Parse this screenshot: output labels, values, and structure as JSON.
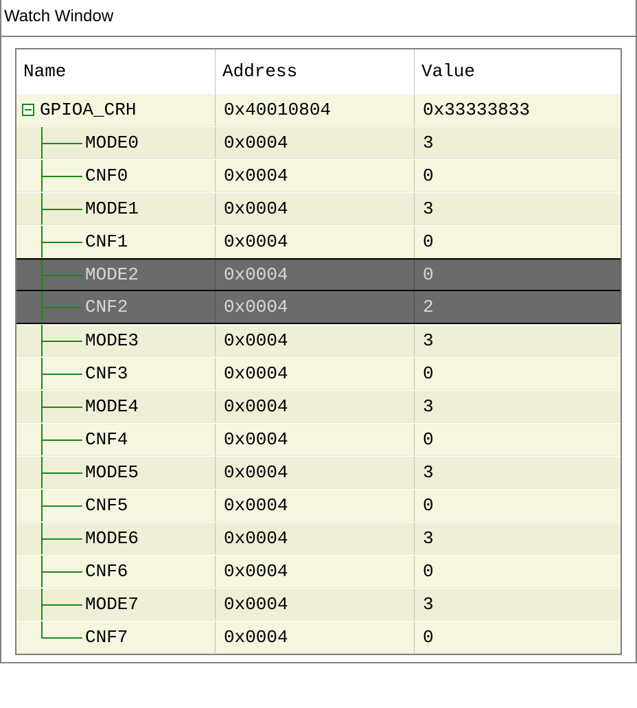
{
  "window": {
    "title": "Watch Window"
  },
  "columns": {
    "name": "Name",
    "address": "Address",
    "value": "Value"
  },
  "root": {
    "name": "GPIOA_CRH",
    "address": "0x40010804",
    "value": "0x33333833"
  },
  "children": [
    {
      "name": "MODE0",
      "address": "0x0004",
      "value": "3",
      "selected": false
    },
    {
      "name": "CNF0",
      "address": "0x0004",
      "value": "0",
      "selected": false
    },
    {
      "name": "MODE1",
      "address": "0x0004",
      "value": "3",
      "selected": false
    },
    {
      "name": "CNF1",
      "address": "0x0004",
      "value": "0",
      "selected": false
    },
    {
      "name": "MODE2",
      "address": "0x0004",
      "value": "0",
      "selected": true
    },
    {
      "name": "CNF2",
      "address": "0x0004",
      "value": "2",
      "selected": true
    },
    {
      "name": "MODE3",
      "address": "0x0004",
      "value": "3",
      "selected": false
    },
    {
      "name": "CNF3",
      "address": "0x0004",
      "value": "0",
      "selected": false
    },
    {
      "name": "MODE4",
      "address": "0x0004",
      "value": "3",
      "selected": false
    },
    {
      "name": "CNF4",
      "address": "0x0004",
      "value": "0",
      "selected": false
    },
    {
      "name": "MODE5",
      "address": "0x0004",
      "value": "3",
      "selected": false
    },
    {
      "name": "CNF5",
      "address": "0x0004",
      "value": "0",
      "selected": false
    },
    {
      "name": "MODE6",
      "address": "0x0004",
      "value": "3",
      "selected": false
    },
    {
      "name": "CNF6",
      "address": "0x0004",
      "value": "0",
      "selected": false
    },
    {
      "name": "MODE7",
      "address": "0x0004",
      "value": "3",
      "selected": false
    },
    {
      "name": "CNF7",
      "address": "0x0004",
      "value": "0",
      "selected": false
    }
  ],
  "colors": {
    "tree_line": "#1a8a1a",
    "row_bg_a": "#f5f5e0",
    "row_bg_b": "#efefd8",
    "selected_bg": "#6b6b6b",
    "selected_fg": "#d8d8d8",
    "border": "#808080"
  }
}
